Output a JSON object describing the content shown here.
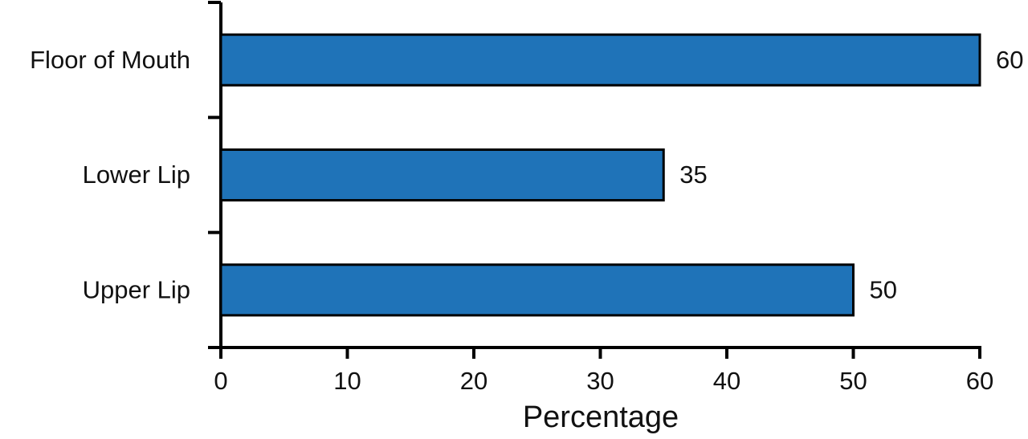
{
  "chart_data": {
    "type": "bar",
    "orientation": "horizontal",
    "categories": [
      "Floor of Mouth",
      "Lower Lip",
      "Upper Lip"
    ],
    "values": [
      60,
      35,
      50
    ],
    "color": "#1f73b8",
    "xlabel": "Percentage",
    "xlim": [
      0,
      60
    ],
    "xticks": [
      0,
      10,
      20,
      30,
      40,
      50,
      60
    ]
  }
}
